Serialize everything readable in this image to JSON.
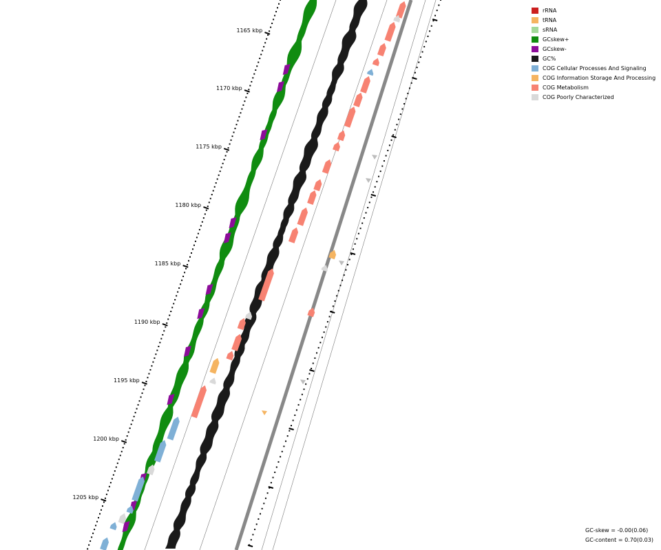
{
  "scale_labels": [
    "1165 kbp",
    "1170 kbp",
    "1175 kbp",
    "1180 kbp",
    "1185 kbp",
    "1190 kbp",
    "1195 kbp",
    "1200 kbp",
    "1205 kbp"
  ],
  "legend": [
    {
      "label": "rRNA",
      "color": "#cc1f1f"
    },
    {
      "label": "tRNA",
      "color": "#f5b461"
    },
    {
      "label": "sRNA",
      "color": "#a3d99a"
    },
    {
      "label": "GCskew+",
      "color": "#108c10"
    },
    {
      "label": "GCskew-",
      "color": "#8c0c99"
    },
    {
      "label": "GC%",
      "color": "#1a1a1a"
    },
    {
      "label": "COG Cellular Processes And Signaling",
      "color": "#7fb0d6"
    },
    {
      "label": "COG Information Storage And Processing",
      "color": "#f5b461"
    },
    {
      "label": "COG Metabolism",
      "color": "#f78272"
    },
    {
      "label": "COG Poorly Characterized",
      "color": "#d9d9d9"
    }
  ],
  "stats": {
    "gc_skew": "GC-skew = -0.00(0.06)",
    "gc_content": "GC-content = 0.70(0.03)"
  }
}
